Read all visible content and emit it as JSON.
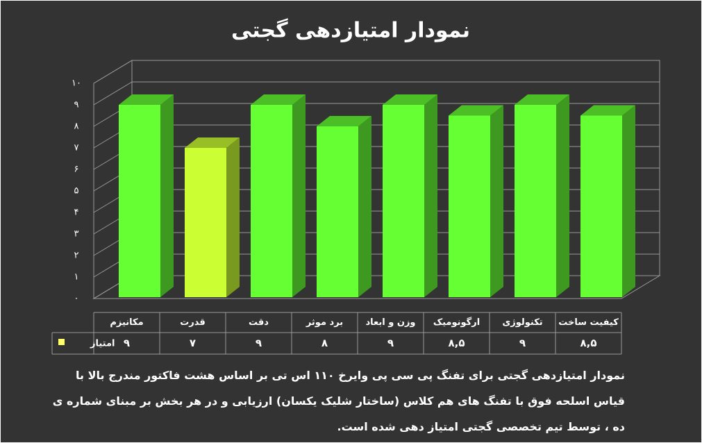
{
  "chart_data": {
    "type": "bar3d",
    "title": "نمودار امتیازدهی گجتی",
    "categories": [
      "مکانیزم",
      "قدرت",
      "دقت",
      "برد موثر",
      "وزن و ابعاد",
      "ارگونومیک",
      "تکنولوژی",
      "کیفیت ساخت"
    ],
    "series": [
      {
        "name": "امتیاز",
        "color": "#ffff66",
        "bar_colors": [
          "#66ff33",
          "#ccff33",
          "#66ff33",
          "#66ff33",
          "#66ff33",
          "#66ff33",
          "#66ff33",
          "#66ff33"
        ],
        "values": [
          9,
          7,
          9,
          8,
          9,
          8.5,
          9,
          8.5
        ],
        "value_labels": [
          "۹",
          "۷",
          "۹",
          "۸",
          "۹",
          "۸,۵",
          "۹",
          "۸,۵"
        ]
      }
    ],
    "ylim": [
      0,
      10
    ],
    "yticks": [
      {
        "value": 0,
        "label": "۰"
      },
      {
        "value": 1,
        "label": "۱"
      },
      {
        "value": 2,
        "label": "۲"
      },
      {
        "value": 3,
        "label": "۳"
      },
      {
        "value": 4,
        "label": "۴"
      },
      {
        "value": 5,
        "label": "۵"
      },
      {
        "value": 6,
        "label": "۶"
      },
      {
        "value": 7,
        "label": "۷"
      },
      {
        "value": 8,
        "label": "۸"
      },
      {
        "value": 9,
        "label": "۹"
      },
      {
        "value": 10,
        "label": "۱۰"
      }
    ],
    "grid": true,
    "data_table": true,
    "note": "نمودار امتیازدهی گجتی برای تفنگ پی سی پی وایرخ ۱۱۰ اس تی بر اساس هشت فاکتور مندرج بالا با قیاس اسلحه فوق با تفنگ های هم کلاس (ساختار شلیک یکسان) ارزیابی و در هر بخش بر مبنای شماره ی ده ، توسط تیم تخصصی گجتی امتیاز دهی شده است."
  }
}
